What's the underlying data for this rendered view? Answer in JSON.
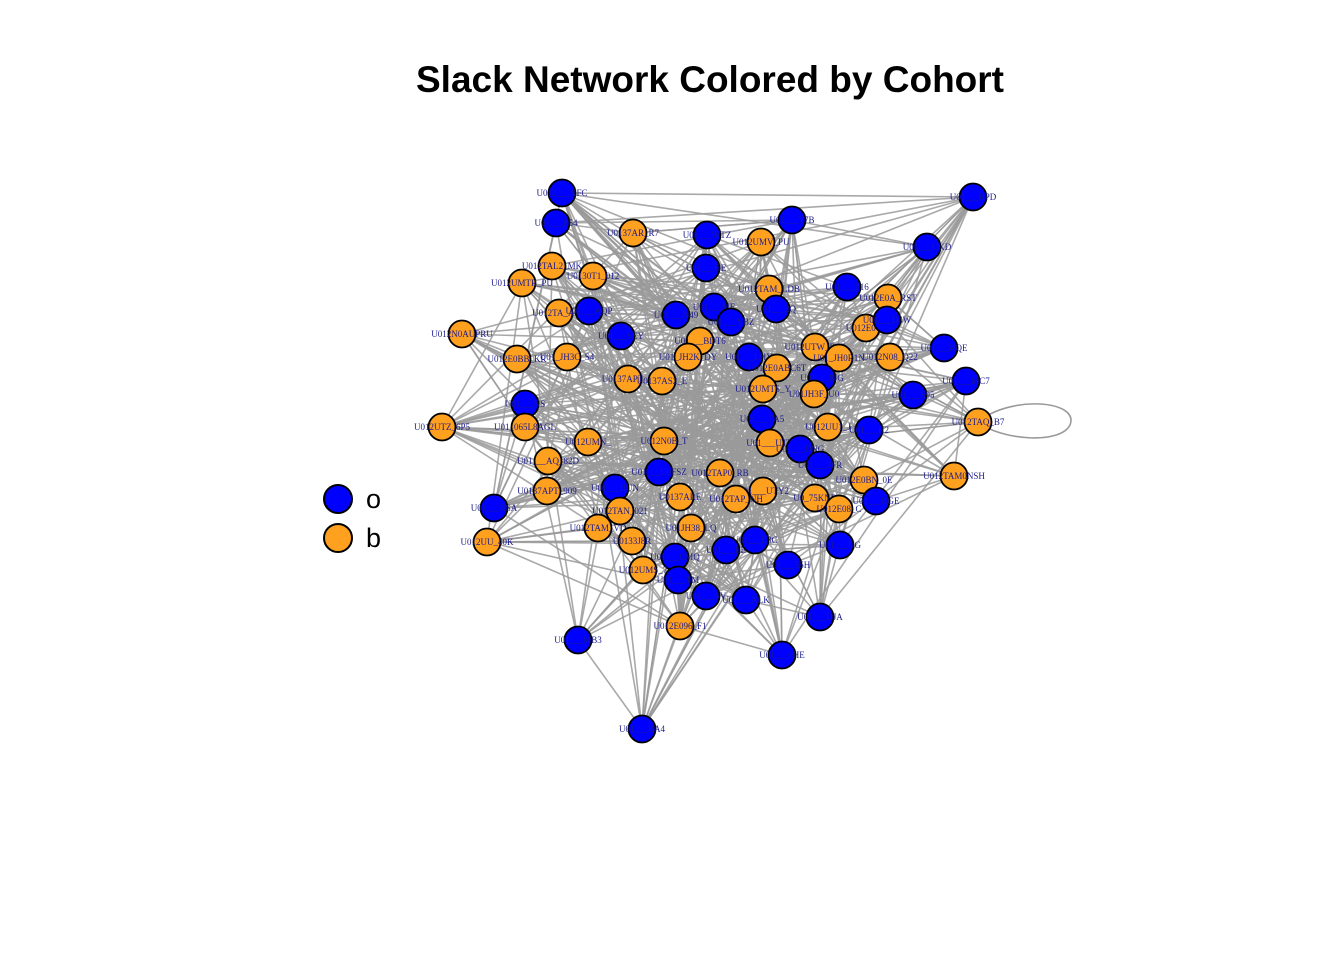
{
  "title": "Slack Network Colored by Cohort",
  "colors": {
    "o": "#0000ff",
    "b": "#ffa01e",
    "edge": "#9a9a9a",
    "label": "#1a1a8c",
    "outline": "#000000"
  },
  "legend": [
    {
      "key": "o",
      "label": "o"
    },
    {
      "key": "b",
      "label": "b"
    }
  ],
  "nodes": [
    {
      "id": "U012___XFC",
      "label": "U012___XFC",
      "cohort": "o"
    },
    {
      "id": "U01___P54",
      "label": "U01___P54",
      "cohort": "o"
    },
    {
      "id": "U0137AR_R7",
      "label": "U0137AR_R7",
      "cohort": "b"
    },
    {
      "id": "U01___WTZ",
      "label": "U01___WTZ",
      "cohort": "o"
    },
    {
      "id": "U012UMV_PU",
      "label": "U012UMV_PU",
      "cohort": "b"
    },
    {
      "id": "U01___T7B",
      "label": "U01___T7B",
      "cohort": "o"
    },
    {
      "id": "U01___RPD",
      "label": "U01___RPD",
      "cohort": "o"
    },
    {
      "id": "U01___UKD",
      "label": "U01___UKD",
      "cohort": "o"
    },
    {
      "id": "U012TAL2_MK",
      "label": "U012TAL2_MK",
      "cohort": "b"
    },
    {
      "id": "U0130T1_012",
      "label": "U0130T1_012",
      "cohort": "b"
    },
    {
      "id": "U012UMTR_PU",
      "label": "U012UMTR_PU",
      "cohort": "b"
    },
    {
      "id": "U01___CE",
      "label": "U01___CE",
      "cohort": "o"
    },
    {
      "id": "U012TAM_LDB",
      "label": "U012TAM_LDB",
      "cohort": "b"
    },
    {
      "id": "U01___T16",
      "label": "U01___T16",
      "cohort": "o"
    },
    {
      "id": "U012E0A_RST",
      "label": "U012E0A_RST",
      "cohort": "b"
    },
    {
      "id": "U012TA_AQP",
      "label": "U012TA_AQP",
      "cohort": "b"
    },
    {
      "id": "U01___AQP",
      "label": "U01___AQP",
      "cohort": "o"
    },
    {
      "id": "U01___N49",
      "label": "U01___N49",
      "cohort": "o"
    },
    {
      "id": "U01___ME",
      "label": "U01___ME",
      "cohort": "o"
    },
    {
      "id": "U01___YBZ",
      "label": "U01___YBZ",
      "cohort": "o"
    },
    {
      "id": "U01___2Q",
      "label": "U01___2Q",
      "cohort": "o"
    },
    {
      "id": "U012E07C",
      "label": "U012E07C",
      "cohort": "b"
    },
    {
      "id": "U01___D4W",
      "label": "U01___D4W",
      "cohort": "o"
    },
    {
      "id": "U012N0AUPRU",
      "label": "U012N0AUPRU",
      "cohort": "b"
    },
    {
      "id": "U01___SEY",
      "label": "U01___SEY",
      "cohort": "o"
    },
    {
      "id": "U01___BDT6",
      "label": "U01___BDT6",
      "cohort": "b"
    },
    {
      "id": "U012UTW_R0Z",
      "label": "U012UTW_R0Z",
      "cohort": "b"
    },
    {
      "id": "U01___RQE",
      "label": "U01___RQE",
      "cohort": "o"
    },
    {
      "id": "U012E0BB_KR",
      "label": "U012E0BB_KR",
      "cohort": "b"
    },
    {
      "id": "U01_JH3C_S4",
      "label": "U01_JH3C_S4",
      "cohort": "b"
    },
    {
      "id": "U01_JH2K_DY",
      "label": "U01_JH2K_DY",
      "cohort": "b"
    },
    {
      "id": "U01___LHY",
      "label": "U01___LHY",
      "cohort": "o"
    },
    {
      "id": "U012E0ABC6T",
      "label": "U012E0ABC6T",
      "cohort": "b"
    },
    {
      "id": "U01_JH0R1N",
      "label": "U01_JH0R1N",
      "cohort": "b"
    },
    {
      "id": "U012N08_Q22",
      "label": "U012N08_Q22",
      "cohort": "b"
    },
    {
      "id": "U01___MC7",
      "label": "U01___MC7",
      "cohort": "o"
    },
    {
      "id": "U0137APT_D",
      "label": "U0137APT_D",
      "cohort": "b"
    },
    {
      "id": "U01___8JG",
      "label": "U01___8JG",
      "cohort": "o"
    },
    {
      "id": "U0137AS2_E",
      "label": "U0137AS2_E",
      "cohort": "b"
    },
    {
      "id": "U01JH3F_U0",
      "label": "U01JH3F_U0",
      "cohort": "b"
    },
    {
      "id": "U01___S95",
      "label": "U01___S95",
      "cohort": "o"
    },
    {
      "id": "U012UMTS_Y",
      "label": "U012UMTS_Y",
      "cohort": "b"
    },
    {
      "id": "U01___NS",
      "label": "U01___NS",
      "cohort": "o"
    },
    {
      "id": "U012UTZ_6P5",
      "label": "U012UTZ_6P5",
      "cohort": "b"
    },
    {
      "id": "U01_065L8AGL",
      "label": "U01_065L8AGL",
      "cohort": "b"
    },
    {
      "id": "U01___7A5",
      "label": "U01___7A5",
      "cohort": "o"
    },
    {
      "id": "U012UU1_J",
      "label": "U012UU1_J",
      "cohort": "b"
    },
    {
      "id": "U01___H2",
      "label": "U01___H2",
      "cohort": "o"
    },
    {
      "id": "U012TAQ_B7",
      "label": "U012TAQ_B7",
      "cohort": "b"
    },
    {
      "id": "U012UMN_",
      "label": "U012UMN_",
      "cohort": "b"
    },
    {
      "id": "U012N0B_T",
      "label": "U012N0B_T",
      "cohort": "b"
    },
    {
      "id": "U01___UTY",
      "label": "U01___UTY",
      "cohort": "b"
    },
    {
      "id": "U01___DNG",
      "label": "U01___DNG",
      "cohort": "o"
    },
    {
      "id": "U01___2FR",
      "label": "U01___2FR",
      "cohort": "o"
    },
    {
      "id": "U01___AQ_82D",
      "label": "U01___AQ_82D",
      "cohort": "b"
    },
    {
      "id": "U01___U0FSZ",
      "label": "U01___U0FSZ",
      "cohort": "o"
    },
    {
      "id": "U012TAP0_RB",
      "label": "U012TAP0_RB",
      "cohort": "b"
    },
    {
      "id": "U012TAM0NSH",
      "label": "U012TAM0NSH",
      "cohort": "b"
    },
    {
      "id": "U012E0BN_0E",
      "label": "U012E0BN_0E",
      "cohort": "b"
    },
    {
      "id": "U0137APT_909",
      "label": "U0137APT_909",
      "cohort": "b"
    },
    {
      "id": "U01___BUN",
      "label": "U01___BUN",
      "cohort": "o"
    },
    {
      "id": "U0137ARE",
      "label": "U0137ARE",
      "cohort": "b"
    },
    {
      "id": "U01___UTY2",
      "label": "U01___UTY2",
      "cohort": "b"
    },
    {
      "id": "U0_75KNB",
      "label": "U0_75KNB",
      "cohort": "b"
    },
    {
      "id": "U01___RGE",
      "label": "U01___RGE",
      "cohort": "o"
    },
    {
      "id": "U01___RSA",
      "label": "U01___RSA",
      "cohort": "o"
    },
    {
      "id": "U012TAN_021",
      "label": "U012TAN_021",
      "cohort": "b"
    },
    {
      "id": "U012TAP_NH",
      "label": "U012TAP_NH",
      "cohort": "b"
    },
    {
      "id": "U012E08_C",
      "label": "U012E08_C",
      "cohort": "b"
    },
    {
      "id": "U012UU_40K",
      "label": "U012UU_40K",
      "cohort": "b"
    },
    {
      "id": "U012TAM_VD",
      "label": "U012TAM_VD",
      "cohort": "b"
    },
    {
      "id": "U0133J8R",
      "label": "U0133J8R",
      "cohort": "b"
    },
    {
      "id": "U01JH38_LQ",
      "label": "U01JH38_LQ",
      "cohort": "b"
    },
    {
      "id": "U01___E3C",
      "label": "U01___E3C",
      "cohort": "o"
    },
    {
      "id": "U01___UG",
      "label": "U01___UG",
      "cohort": "o"
    },
    {
      "id": "U01___CMQ",
      "label": "U01___CMQ",
      "cohort": "o"
    },
    {
      "id": "U01___LE",
      "label": "U01___LE",
      "cohort": "o"
    },
    {
      "id": "U01___55H",
      "label": "U01___55H",
      "cohort": "o"
    },
    {
      "id": "U012UMS_7",
      "label": "U012UMS_7",
      "cohort": "b"
    },
    {
      "id": "U01___TM",
      "label": "U01___TM",
      "cohort": "o"
    },
    {
      "id": "U01___SV",
      "label": "U01___SV",
      "cohort": "o"
    },
    {
      "id": "U01___XLK",
      "label": "U01___XLK",
      "cohort": "o"
    },
    {
      "id": "U01___DJA",
      "label": "U01___DJA",
      "cohort": "o"
    },
    {
      "id": "U012E096_F1",
      "label": "U012E096_F1",
      "cohort": "b"
    },
    {
      "id": "U01___MB3",
      "label": "U01___MB3",
      "cohort": "o"
    },
    {
      "id": "U01___0HE",
      "label": "U01___0HE",
      "cohort": "o"
    },
    {
      "id": "U01___RA4",
      "label": "U01___RA4",
      "cohort": "o"
    }
  ]
}
